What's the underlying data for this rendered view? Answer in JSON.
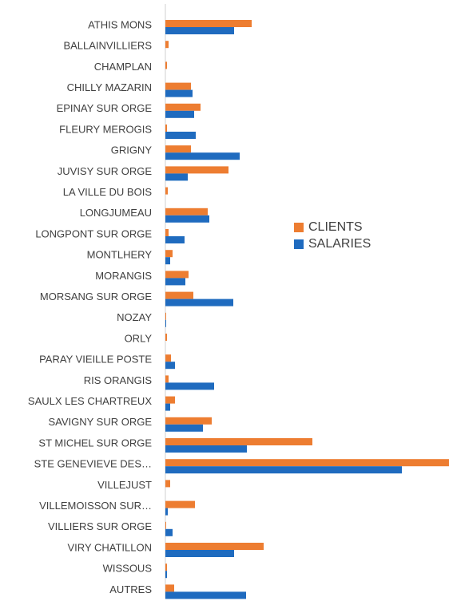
{
  "chart_data": {
    "type": "hbar",
    "categories": [
      "ATHIS MONS",
      "BALLAINVILLIERS",
      "CHAMPLAN",
      "CHILLY MAZARIN",
      "EPINAY SUR ORGE",
      "FLEURY MEROGIS",
      "GRIGNY",
      "JUVISY SUR ORGE",
      "LA VILLE DU BOIS",
      "LONGJUMEAU",
      "LONGPONT SUR ORGE",
      "MONTLHERY",
      "MORANGIS",
      "MORSANG SUR ORGE",
      "NOZAY",
      "ORLY",
      "PARAY VIEILLE POSTE",
      "RIS ORANGIS",
      "SAULX LES CHARTREUX",
      "SAVIGNY SUR ORGE",
      "ST MICHEL SUR ORGE",
      "STE GENEVIEVE DES…",
      "VILLEJUST",
      "VILLEMOISSON SUR…",
      "VILLIERS SUR ORGE",
      "VIRY CHATILLON",
      "WISSOUS",
      "AUTRES"
    ],
    "series": [
      {
        "name": "CLIENTS",
        "color": "#ed7d31",
        "values": [
          108,
          4,
          2,
          32,
          44,
          2,
          32,
          79,
          3,
          53,
          4,
          9,
          29,
          35,
          1,
          2,
          7,
          4,
          12,
          58,
          184,
          355,
          6,
          37,
          1,
          123,
          2,
          11
        ]
      },
      {
        "name": "SALARIES",
        "color": "#1f6bbf",
        "values": [
          86,
          0,
          0,
          34,
          36,
          38,
          93,
          28,
          0,
          55,
          24,
          6,
          25,
          85,
          1,
          0,
          12,
          61,
          6,
          47,
          102,
          296,
          0,
          3,
          9,
          86,
          2,
          101
        ]
      }
    ],
    "xlim": [
      0,
      355
    ],
    "legend": "right"
  }
}
